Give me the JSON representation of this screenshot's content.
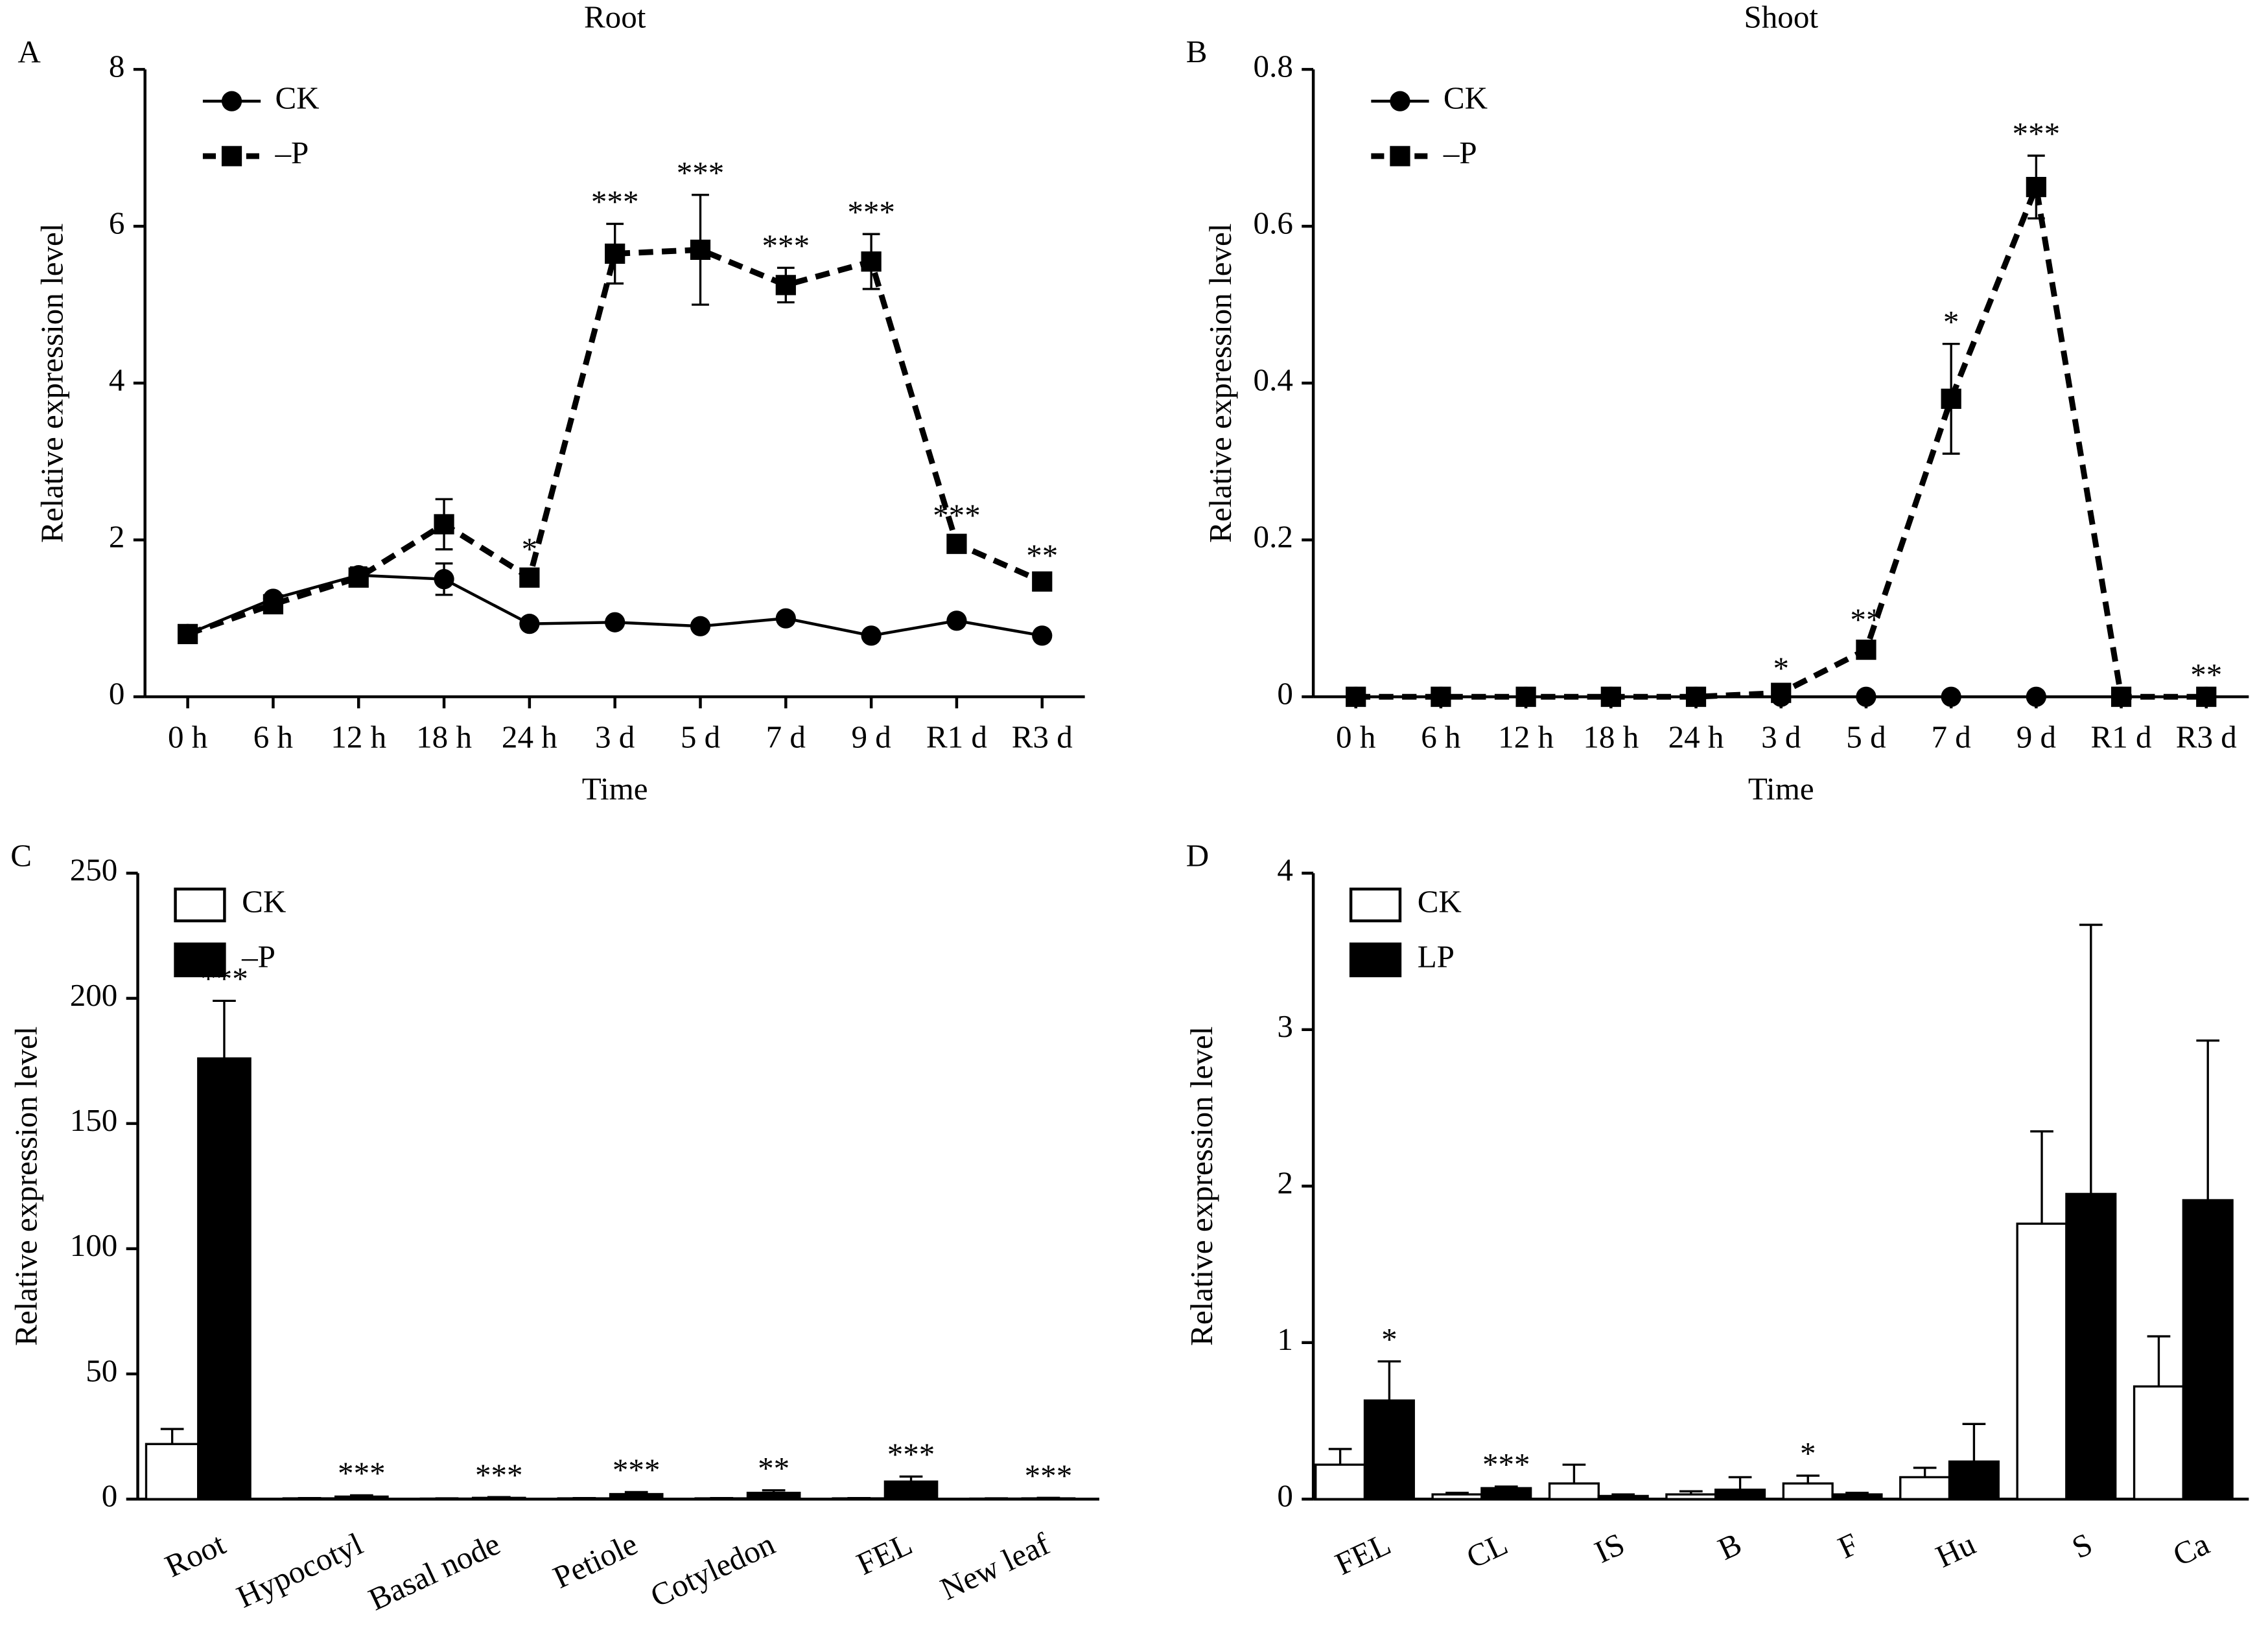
{
  "chart_data": [
    {
      "type": "line",
      "panel": "A",
      "title": "Root",
      "xlabel": "Time",
      "ylabel": "Relative expression level",
      "legend": "upper left",
      "categories": [
        "0 h",
        "6 h",
        "12 h",
        "18 h",
        "24 h",
        "3 d",
        "5 d",
        "7 d",
        "9 d",
        "R1 d",
        "R3 d"
      ],
      "ylim": [
        0,
        8
      ],
      "yticks": [
        0,
        2,
        4,
        6,
        8
      ],
      "series": [
        {
          "name": "CK",
          "color": "#000000",
          "line_style": "solid",
          "marker": "circle",
          "values": [
            0.8,
            1.25,
            1.55,
            1.5,
            0.93,
            0.95,
            0.9,
            1.0,
            0.78,
            0.97,
            0.78
          ],
          "errors": [
            0.03,
            0.05,
            0.1,
            0.2,
            0.05,
            0.04,
            0.04,
            0.05,
            0.04,
            0.05,
            0.04
          ],
          "annotations": [
            null,
            null,
            null,
            null,
            null,
            null,
            null,
            null,
            null,
            null,
            null
          ]
        },
        {
          "name": "–P",
          "color": "#000000",
          "line_style": "dashed",
          "marker": "square",
          "values": [
            0.8,
            1.18,
            1.52,
            2.2,
            1.52,
            5.65,
            5.7,
            5.25,
            5.55,
            1.95,
            1.47
          ],
          "errors": [
            0.03,
            0.05,
            0.1,
            0.32,
            0.08,
            0.38,
            0.7,
            0.22,
            0.35,
            0.08,
            0.05
          ],
          "annotations": [
            null,
            null,
            null,
            null,
            "*",
            "***",
            "***",
            "***",
            "***",
            "***",
            "**"
          ]
        }
      ]
    },
    {
      "type": "line",
      "panel": "B",
      "title": "Shoot",
      "xlabel": "Time",
      "ylabel": "Relative expression level",
      "legend": "upper left",
      "categories": [
        "0 h",
        "6 h",
        "12 h",
        "18 h",
        "24 h",
        "3 d",
        "5 d",
        "7 d",
        "9 d",
        "R1 d",
        "R3 d"
      ],
      "ylim": [
        0,
        0.8
      ],
      "yticks": [
        0,
        0.2,
        0.4,
        0.6,
        0.8
      ],
      "series": [
        {
          "name": "CK",
          "color": "#000000",
          "line_style": "solid",
          "marker": "circle",
          "values": [
            0,
            0,
            0,
            0,
            0,
            0,
            0,
            0,
            0,
            0,
            0
          ],
          "errors": [
            0,
            0,
            0,
            0,
            0,
            0,
            0,
            0,
            0,
            0,
            0
          ],
          "annotations": [
            null,
            null,
            null,
            null,
            null,
            null,
            null,
            null,
            null,
            null,
            null
          ]
        },
        {
          "name": "–P",
          "color": "#000000",
          "line_style": "dashed",
          "marker": "square",
          "values": [
            0,
            0,
            0,
            0,
            0,
            0.005,
            0.06,
            0.38,
            0.65,
            0,
            0
          ],
          "errors": [
            0,
            0,
            0,
            0,
            0,
            0.003,
            0.01,
            0.07,
            0.04,
            0,
            0
          ],
          "annotations": [
            null,
            null,
            null,
            null,
            null,
            "*",
            "**",
            "*",
            "***",
            null,
            "**"
          ]
        }
      ]
    },
    {
      "type": "bar",
      "panel": "C",
      "ylabel": "Relative expression level",
      "legend": "upper left",
      "categories": [
        "Root",
        "Hypocotyl",
        "Basal node",
        "Petiole",
        "Cotyledon",
        "FEL",
        "New leaf"
      ],
      "ylim": [
        0,
        250
      ],
      "yticks": [
        0,
        50,
        100,
        150,
        200,
        250
      ],
      "series": [
        {
          "name": "CK",
          "color": "#000000",
          "fill": "#ffffff",
          "values": [
            22,
            0.3,
            0.2,
            0.3,
            0.3,
            0.3,
            0.2
          ],
          "errors": [
            6,
            0.1,
            0.1,
            0.1,
            0.1,
            0.1,
            0.1
          ],
          "annotations": [
            null,
            null,
            null,
            null,
            null,
            null,
            null
          ]
        },
        {
          "name": "–P",
          "color": "#000000",
          "fill": "#000000",
          "values": [
            176,
            1,
            0.5,
            2,
            2.5,
            7,
            0.3
          ],
          "errors": [
            23,
            0.5,
            0.3,
            0.8,
            1,
            2,
            0.2
          ],
          "annotations": [
            "***",
            "***",
            "***",
            "***",
            "**",
            "***",
            "***"
          ]
        }
      ]
    },
    {
      "type": "bar",
      "panel": "D",
      "ylabel": "Relative expression level",
      "legend": "upper left",
      "categories": [
        "FEL",
        "CL",
        "IS",
        "B",
        "F",
        "Hu",
        "S",
        "Ca"
      ],
      "ylim": [
        0,
        4
      ],
      "yticks": [
        0,
        1,
        2,
        3,
        4
      ],
      "series": [
        {
          "name": "CK",
          "color": "#000000",
          "fill": "#ffffff",
          "values": [
            0.22,
            0.03,
            0.1,
            0.03,
            0.1,
            0.14,
            1.76,
            0.72
          ],
          "errors": [
            0.1,
            0.01,
            0.12,
            0.02,
            0.05,
            0.06,
            0.59,
            0.32
          ],
          "annotations": [
            null,
            null,
            null,
            null,
            "*",
            null,
            null,
            null
          ]
        },
        {
          "name": "LP",
          "color": "#000000",
          "fill": "#000000",
          "values": [
            0.63,
            0.07,
            0.02,
            0.06,
            0.03,
            0.24,
            1.95,
            1.91
          ],
          "errors": [
            0.25,
            0.01,
            0.01,
            0.08,
            0.01,
            0.24,
            1.72,
            1.02
          ],
          "annotations": [
            "*",
            "***",
            null,
            null,
            null,
            null,
            null,
            null
          ]
        }
      ]
    }
  ]
}
